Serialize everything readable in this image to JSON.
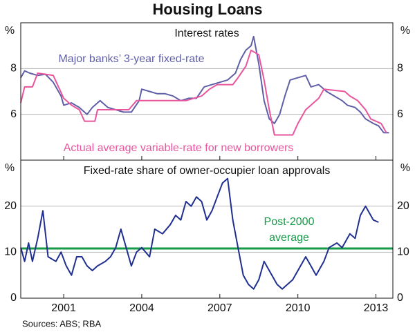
{
  "title": "Housing Loans",
  "source": "Sources: ABS; RBA",
  "chart_data": [
    {
      "type": "line",
      "title": "Interest rates",
      "ylabel": "%",
      "xlim": [
        1999.35,
        2013.65
      ],
      "ylim": [
        4,
        10
      ],
      "yticks": [
        6,
        8
      ],
      "grid": true,
      "series": [
        {
          "name": "Major banks’ 3-year fixed-rate",
          "color": "#5f5fa8",
          "x": [
            1999.35,
            1999.5,
            1999.7,
            2000.0,
            2000.3,
            2000.6,
            2000.9,
            2001.0,
            2001.3,
            2001.6,
            2001.9,
            2002.1,
            2002.4,
            2002.7,
            2003.0,
            2003.3,
            2003.6,
            2003.9,
            2004.0,
            2004.3,
            2004.6,
            2004.9,
            2005.2,
            2005.5,
            2005.8,
            2006.1,
            2006.4,
            2006.7,
            2007.0,
            2007.3,
            2007.6,
            2007.8,
            2008.0,
            2008.2,
            2008.3,
            2008.5,
            2008.7,
            2008.9,
            2009.1,
            2009.3,
            2009.5,
            2009.7,
            2010.0,
            2010.3,
            2010.5,
            2010.8,
            2011.1,
            2011.4,
            2011.7,
            2011.9,
            2012.2,
            2012.4,
            2012.6,
            2012.9,
            2013.1,
            2013.3,
            2013.5
          ],
          "values": [
            7.6,
            7.9,
            7.8,
            7.7,
            7.75,
            7.4,
            6.8,
            6.4,
            6.5,
            6.3,
            6.0,
            6.3,
            6.6,
            6.3,
            6.2,
            6.1,
            6.1,
            6.6,
            7.1,
            7.0,
            6.9,
            6.9,
            6.8,
            6.6,
            6.7,
            6.7,
            7.2,
            7.3,
            7.4,
            7.5,
            7.8,
            8.4,
            8.8,
            9.0,
            9.4,
            8.2,
            6.6,
            5.8,
            5.6,
            6.0,
            6.8,
            7.5,
            7.6,
            7.7,
            7.2,
            7.3,
            7.0,
            6.8,
            6.6,
            6.4,
            6.3,
            6.1,
            5.8,
            5.6,
            5.5,
            5.2,
            5.2
          ]
        },
        {
          "name": "Actual average variable-rate for new borrowers",
          "color": "#e8559c",
          "x": [
            1999.35,
            1999.5,
            1999.8,
            2000.0,
            2000.6,
            2000.8,
            2001.0,
            2001.3,
            2001.6,
            2001.8,
            2002.2,
            2002.3,
            2003.5,
            2003.8,
            2005.7,
            2006.3,
            2006.6,
            2006.9,
            2007.5,
            2007.7,
            2008.0,
            2008.2,
            2008.5,
            2008.7,
            2008.9,
            2009.1,
            2009.8,
            2010.0,
            2010.3,
            2010.8,
            2011.0,
            2011.8,
            2012.0,
            2012.3,
            2012.6,
            2012.8,
            2013.2,
            2013.4
          ],
          "values": [
            6.5,
            7.2,
            7.2,
            7.8,
            7.7,
            7.2,
            6.7,
            6.4,
            6.2,
            5.7,
            5.7,
            6.2,
            6.2,
            6.6,
            6.6,
            6.8,
            7.1,
            7.3,
            7.3,
            7.6,
            8.1,
            8.8,
            8.6,
            7.5,
            6.2,
            5.1,
            5.1,
            5.6,
            6.2,
            6.7,
            7.1,
            7.0,
            6.8,
            6.6,
            6.2,
            5.8,
            5.6,
            5.2
          ]
        }
      ]
    },
    {
      "type": "line",
      "title": "Fixed-rate share of owner-occupier loan approvals",
      "ylabel": "%",
      "xlim": [
        1999.35,
        2013.65
      ],
      "xticks": [
        2001,
        2004,
        2007,
        2010,
        2013
      ],
      "ylim": [
        0,
        30
      ],
      "yticks": [
        0,
        10,
        20
      ],
      "grid": true,
      "reference_line": {
        "value": 10.8,
        "color": "#169a48",
        "label": [
          "Post-2000",
          "average"
        ]
      },
      "series": [
        {
          "color": "#1f2f8f",
          "x": [
            1999.35,
            1999.5,
            1999.65,
            1999.8,
            2000.0,
            2000.2,
            2000.4,
            2000.7,
            2000.9,
            2001.1,
            2001.3,
            2001.5,
            2001.7,
            2001.9,
            2002.1,
            2002.3,
            2002.6,
            2002.8,
            2003.0,
            2003.2,
            2003.4,
            2003.6,
            2003.8,
            2004.0,
            2004.3,
            2004.5,
            2004.8,
            2005.1,
            2005.3,
            2005.5,
            2005.7,
            2005.9,
            2006.1,
            2006.3,
            2006.5,
            2006.7,
            2006.9,
            2007.1,
            2007.3,
            2007.5,
            2007.7,
            2007.9,
            2008.1,
            2008.3,
            2008.5,
            2008.7,
            2009.0,
            2009.2,
            2009.4,
            2009.6,
            2009.8,
            2010.0,
            2010.3,
            2010.5,
            2010.7,
            2011.0,
            2011.2,
            2011.5,
            2011.7,
            2012.0,
            2012.2,
            2012.4,
            2012.6,
            2012.9,
            2013.1
          ],
          "values": [
            11,
            8,
            12,
            8,
            13,
            19,
            9,
            8,
            10,
            7,
            5,
            9,
            9,
            7,
            6,
            7,
            8,
            9,
            11,
            15,
            11,
            7,
            10,
            11,
            9,
            15,
            14,
            16,
            18,
            17,
            21,
            20,
            22,
            21,
            17,
            19,
            22,
            25,
            26,
            17,
            11,
            5,
            3,
            2,
            4,
            8,
            5,
            3,
            2,
            3,
            4,
            6,
            9,
            7,
            5,
            8,
            11,
            12,
            11,
            14,
            13,
            18,
            20,
            17,
            16.5
          ]
        }
      ]
    }
  ]
}
